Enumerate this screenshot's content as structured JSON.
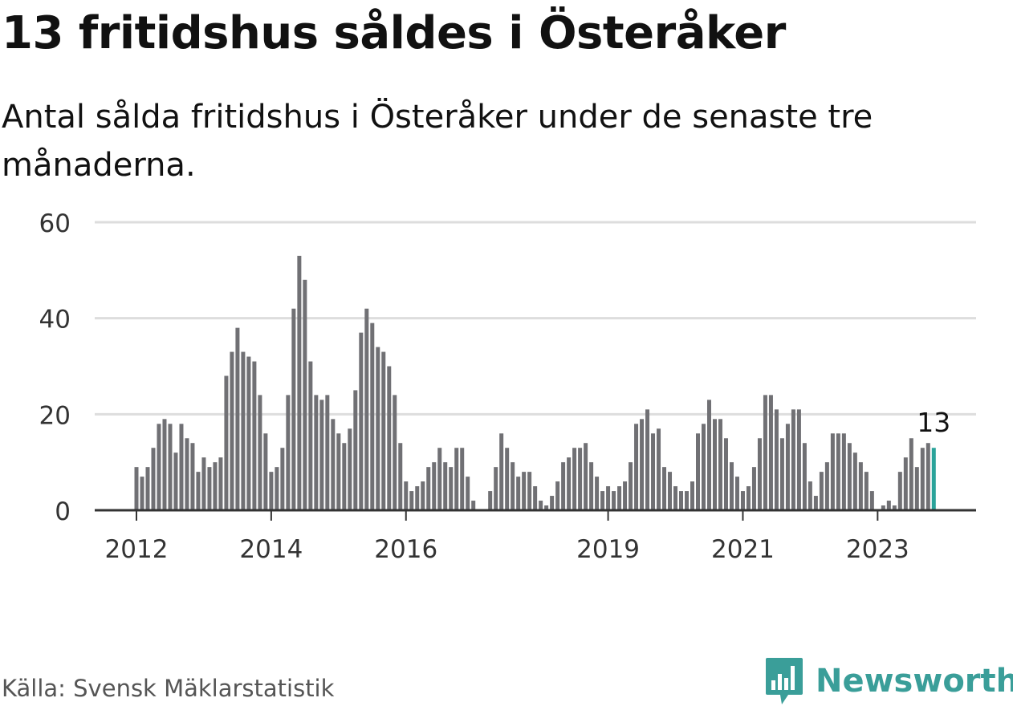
{
  "header": {
    "title": "13 fritidshus såldes i Österåker",
    "subtitle": "Antal sålda fritidshus i Österåker under de senaste tre månaderna."
  },
  "footer": {
    "source": "Källa: Svensk Mäklarstatistik",
    "brand": "Newsworthy"
  },
  "colors": {
    "bar": "#707074",
    "highlight": "#2aa39a",
    "grid": "#dddddd",
    "axis": "#333333",
    "text": "#111111",
    "tick_text": "#333333",
    "brand": "#3a9e99"
  },
  "icons": {
    "logo": "newsworthy-logo-icon"
  },
  "chart_data": {
    "type": "bar",
    "title": "13 fritidshus såldes i Österåker",
    "subtitle": "Antal sålda fritidshus i Österåker under de senaste tre månaderna.",
    "xlabel": "",
    "ylabel": "",
    "ylim": [
      0,
      60
    ],
    "yticks": [
      0,
      20,
      40,
      60
    ],
    "grid": true,
    "start": "2012-01",
    "xtick_labels": [
      {
        "label": "2012",
        "index": 0
      },
      {
        "label": "2014",
        "index": 24
      },
      {
        "label": "2016",
        "index": 48
      },
      {
        "label": "2019",
        "index": 84
      },
      {
        "label": "2021",
        "index": 108
      },
      {
        "label": "2023",
        "index": 132
      }
    ],
    "highlight_index": 142,
    "highlight_label": "13",
    "series": [
      {
        "name": "Antal sålda fritidshus",
        "values": [
          9,
          7,
          9,
          13,
          18,
          19,
          18,
          12,
          18,
          15,
          14,
          8,
          11,
          9,
          10,
          11,
          28,
          33,
          38,
          33,
          32,
          31,
          24,
          16,
          8,
          9,
          13,
          24,
          42,
          53,
          48,
          31,
          24,
          23,
          24,
          19,
          16,
          14,
          17,
          25,
          37,
          42,
          39,
          34,
          33,
          30,
          24,
          14,
          6,
          4,
          5,
          6,
          9,
          10,
          13,
          10,
          9,
          13,
          13,
          7,
          2,
          0,
          0,
          4,
          9,
          16,
          13,
          10,
          7,
          8,
          8,
          5,
          2,
          1,
          3,
          6,
          10,
          11,
          13,
          13,
          14,
          10,
          7,
          4,
          5,
          4,
          5,
          6,
          10,
          18,
          19,
          21,
          16,
          17,
          9,
          8,
          5,
          4,
          4,
          6,
          16,
          18,
          23,
          19,
          19,
          15,
          10,
          7,
          4,
          5,
          9,
          15,
          24,
          24,
          21,
          15,
          18,
          21,
          21,
          14,
          6,
          3,
          8,
          10,
          16,
          16,
          16,
          14,
          12,
          10,
          8,
          4,
          0,
          1,
          2,
          1,
          8,
          11,
          15,
          9,
          13,
          14,
          13
        ]
      }
    ]
  }
}
